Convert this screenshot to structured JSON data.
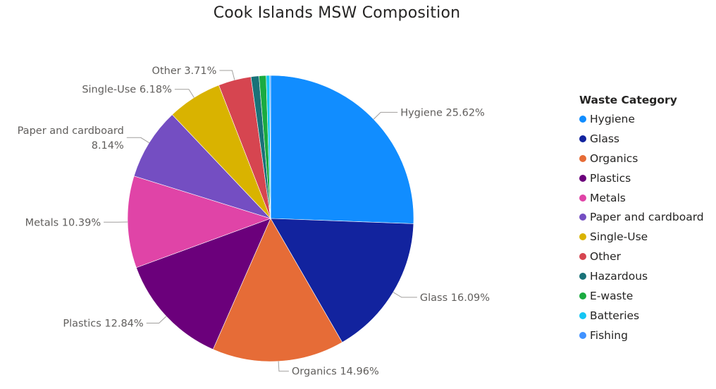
{
  "chart_data": {
    "type": "pie",
    "title": "Cook Islands MSW Composition",
    "legend_title": "Waste Category",
    "legend_position": "right",
    "slices": [
      {
        "name": "Hygiene",
        "value": 25.62,
        "label": "Hygiene 25.62%",
        "color": "#118DFF"
      },
      {
        "name": "Glass",
        "value": 16.09,
        "label": "Glass 16.09%",
        "color": "#12239E"
      },
      {
        "name": "Organics",
        "value": 14.96,
        "label": "Organics 14.96%",
        "color": "#E66C37"
      },
      {
        "name": "Plastics",
        "value": 12.84,
        "label": "Plastics 12.84%",
        "color": "#6B007B"
      },
      {
        "name": "Metals",
        "value": 10.39,
        "label": "Metals 10.39%",
        "color": "#E044A7"
      },
      {
        "name": "Paper and cardboard",
        "value": 8.14,
        "label": "Paper and cardboard\n8.14%",
        "color": "#744EC2"
      },
      {
        "name": "Single-Use",
        "value": 6.18,
        "label": "Single-Use 6.18%",
        "color": "#D9B300"
      },
      {
        "name": "Other",
        "value": 3.71,
        "label": "Other 3.71%",
        "color": "#D64550"
      },
      {
        "name": "Hazardous",
        "value": 0.9,
        "label": "",
        "color": "#197278"
      },
      {
        "name": "E-waste",
        "value": 0.8,
        "label": "",
        "color": "#1AAB40"
      },
      {
        "name": "Batteries",
        "value": 0.4,
        "label": "",
        "color": "#15C6F4"
      },
      {
        "name": "Fishing",
        "value": 0.1,
        "label": "",
        "color": "#4092FF"
      }
    ]
  }
}
